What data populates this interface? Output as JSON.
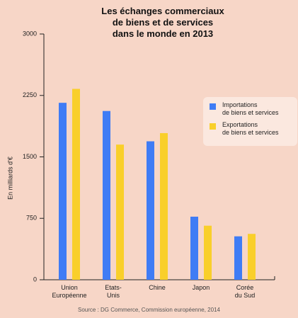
{
  "chart_data": {
    "type": "bar",
    "title": "Les échanges commerciaux\nde biens et de services\ndans le monde en 2013",
    "y_label": "En milliards d'€",
    "source": "Source : DG Commerce, Commission européenne, 2014",
    "categories": [
      "Union\nEuropéenne",
      "Etats-\nUnis",
      "Chine",
      "Japon",
      "Corée\ndu Sud"
    ],
    "series": [
      {
        "name": "Importations\nde biens et services",
        "color": "#3f7cf5",
        "values": [
          2160,
          2060,
          1690,
          770,
          530
        ]
      },
      {
        "name": "Exportations\nde biens et services",
        "color": "#f9cf2a",
        "values": [
          2330,
          1650,
          1790,
          660,
          560
        ]
      }
    ],
    "ylim": [
      0,
      3000
    ],
    "yticks": [
      0,
      750,
      1500,
      2250,
      3000
    ],
    "legend": "upper right"
  }
}
